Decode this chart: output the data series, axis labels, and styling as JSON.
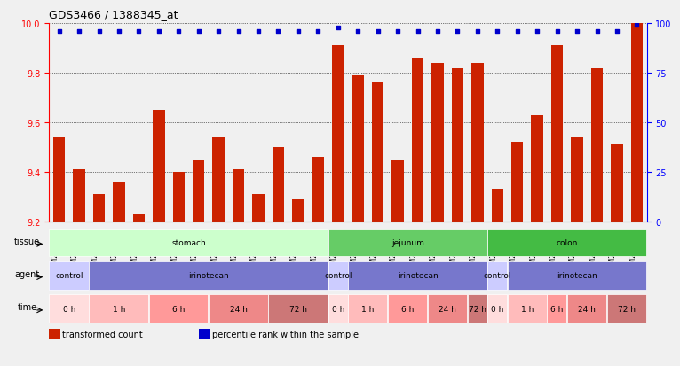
{
  "title": "GDS3466 / 1388345_at",
  "samples": [
    "GSM297524",
    "GSM297525",
    "GSM297526",
    "GSM297527",
    "GSM297528",
    "GSM297529",
    "GSM297530",
    "GSM297531",
    "GSM297532",
    "GSM297533",
    "GSM297534",
    "GSM297535",
    "GSM297536",
    "GSM297537",
    "GSM297538",
    "GSM297539",
    "GSM297540",
    "GSM297541",
    "GSM297542",
    "GSM297543",
    "GSM297544",
    "GSM297545",
    "GSM297546",
    "GSM297547",
    "GSM297548",
    "GSM297549",
    "GSM297550",
    "GSM297551",
    "GSM297552",
    "GSM297553"
  ],
  "bar_values": [
    9.54,
    9.41,
    9.31,
    9.36,
    9.23,
    9.65,
    9.4,
    9.45,
    9.54,
    9.41,
    9.31,
    9.5,
    9.29,
    9.46,
    9.91,
    9.79,
    9.76,
    9.45,
    9.86,
    9.84,
    9.82,
    9.84,
    9.33,
    9.52,
    9.63,
    9.91,
    9.54,
    9.82,
    9.51,
    10.0
  ],
  "percentile_values": [
    9.93,
    9.93,
    9.93,
    9.93,
    9.93,
    9.93,
    9.93,
    9.93,
    9.93,
    9.93,
    9.93,
    9.93,
    9.93,
    9.93,
    9.97,
    9.93,
    9.93,
    9.93,
    9.93,
    9.93,
    9.93,
    9.93,
    9.93,
    9.93,
    9.93,
    9.93,
    9.93,
    9.93,
    9.93,
    9.97
  ],
  "ylim": [
    9.2,
    10.0
  ],
  "yticks_left": [
    9.2,
    9.4,
    9.6,
    9.8,
    10.0
  ],
  "yticks_right": [
    0,
    25,
    50,
    75,
    100
  ],
  "bar_color": "#cc2200",
  "dot_color": "#0000cc",
  "bg_color": "#e8e8e8",
  "plot_bg": "#ffffff",
  "tissue_colors": {
    "stomach": "#ccffcc",
    "jejunum": "#66cc66",
    "colon": "#44bb44"
  },
  "agent_colors": {
    "control": "#ccccff",
    "irinotecan": "#7777cc"
  },
  "time_colors": {
    "0 h": "#ffcccc",
    "1 h": "#ffaaaa",
    "6 h": "#ff8888",
    "24 h": "#ee7777",
    "72 h": "#cc6666"
  },
  "tissue_row": [
    {
      "label": "stomach",
      "start": 0,
      "end": 14,
      "color": "#ccffcc"
    },
    {
      "label": "jejunum",
      "start": 14,
      "end": 22,
      "color": "#66cc66"
    },
    {
      "label": "colon",
      "start": 22,
      "end": 30,
      "color": "#44bb44"
    }
  ],
  "agent_row": [
    {
      "label": "control",
      "start": 0,
      "end": 2,
      "color": "#ccccff"
    },
    {
      "label": "irinotecan",
      "start": 2,
      "end": 14,
      "color": "#7777cc"
    },
    {
      "label": "control",
      "start": 14,
      "end": 15,
      "color": "#ccccff"
    },
    {
      "label": "irinotecan",
      "start": 15,
      "end": 22,
      "color": "#7777cc"
    },
    {
      "label": "control",
      "start": 22,
      "end": 23,
      "color": "#ccccff"
    },
    {
      "label": "irinotecan",
      "start": 23,
      "end": 30,
      "color": "#7777cc"
    }
  ],
  "time_row": [
    {
      "label": "0 h",
      "start": 0,
      "end": 2,
      "color": "#ffdddd"
    },
    {
      "label": "1 h",
      "start": 2,
      "end": 5,
      "color": "#ffbbbb"
    },
    {
      "label": "6 h",
      "start": 5,
      "end": 8,
      "color": "#ff9999"
    },
    {
      "label": "24 h",
      "start": 8,
      "end": 11,
      "color": "#ee8888"
    },
    {
      "label": "72 h",
      "start": 11,
      "end": 14,
      "color": "#cc7777"
    },
    {
      "label": "0 h",
      "start": 14,
      "end": 15,
      "color": "#ffdddd"
    },
    {
      "label": "1 h",
      "start": 15,
      "end": 17,
      "color": "#ffbbbb"
    },
    {
      "label": "6 h",
      "start": 17,
      "end": 19,
      "color": "#ff9999"
    },
    {
      "label": "24 h",
      "start": 19,
      "end": 21,
      "color": "#ee8888"
    },
    {
      "label": "72 h",
      "start": 21,
      "end": 22,
      "color": "#cc7777"
    },
    {
      "label": "0 h",
      "start": 22,
      "end": 23,
      "color": "#ffdddd"
    },
    {
      "label": "1 h",
      "start": 23,
      "end": 25,
      "color": "#ffbbbb"
    },
    {
      "label": "6 h",
      "start": 25,
      "end": 26,
      "color": "#ff9999"
    },
    {
      "label": "24 h",
      "start": 26,
      "end": 28,
      "color": "#ee8888"
    },
    {
      "label": "72 h",
      "start": 28,
      "end": 30,
      "color": "#cc7777"
    }
  ],
  "legend_items": [
    {
      "label": "transformed count",
      "color": "#cc2200"
    },
    {
      "label": "percentile rank within the sample",
      "color": "#0000cc"
    }
  ]
}
